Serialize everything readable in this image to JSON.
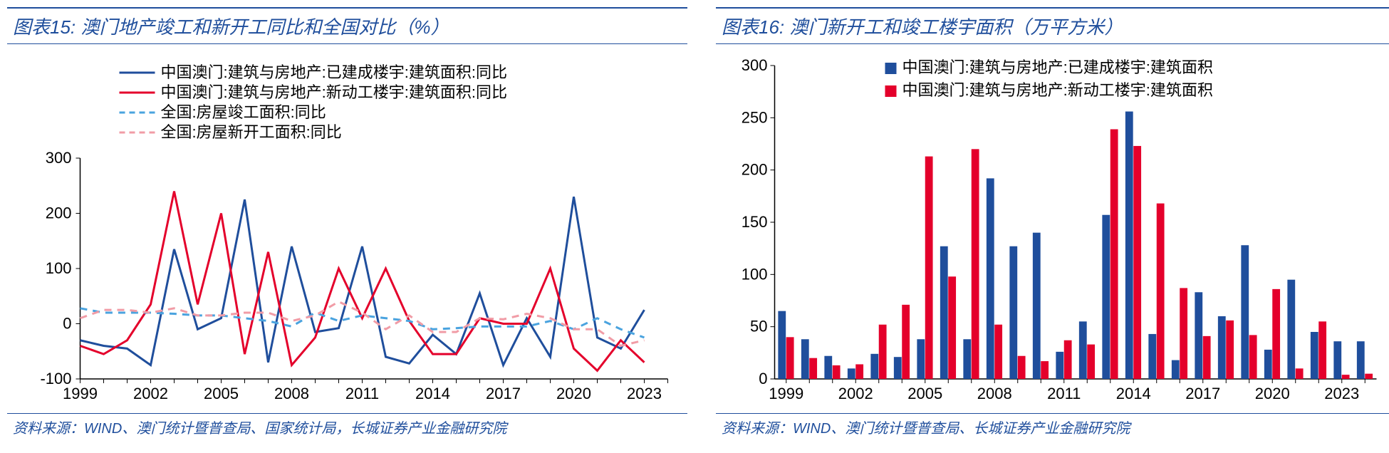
{
  "left_chart": {
    "title": "图表15:   澳门地产竣工和新开工同比和全国对比（%）",
    "source": "资料来源：WIND、澳门统计暨普查局、国家统计局，长城证券产业金融研究院",
    "type": "line",
    "background_color": "#ffffff",
    "title_color": "#1f4e9c",
    "title_fontsize": 26,
    "source_fontsize": 20,
    "axis_fontsize": 22,
    "x_labels": [
      "1999",
      "2002",
      "2005",
      "2008",
      "2011",
      "2014",
      "2017",
      "2020",
      "2023"
    ],
    "x_start": 1999,
    "x_end": 2024,
    "ylim": [
      -100,
      300
    ],
    "ytick_step": 100,
    "series": [
      {
        "name": "中国澳门:建筑与房地产:已建成楼宇:建筑面积:同比",
        "color": "#1f4e9c",
        "dash": "solid",
        "width": 3,
        "data": [
          -30,
          -40,
          -45,
          -75,
          135,
          -10,
          10,
          225,
          -70,
          140,
          -15,
          -8,
          140,
          -60,
          -72,
          -20,
          -55,
          55,
          -75,
          10,
          -60,
          230,
          -25,
          -45,
          25
        ]
      },
      {
        "name": "中国澳门:建筑与房地产:新动工楼宇:建筑面积:同比",
        "color": "#e4002b",
        "dash": "solid",
        "width": 3,
        "data": [
          -40,
          -55,
          -30,
          35,
          240,
          35,
          200,
          -55,
          130,
          -75,
          -25,
          100,
          10,
          100,
          5,
          -55,
          -55,
          10,
          0,
          0,
          100,
          -45,
          -85,
          -30,
          -70
        ]
      },
      {
        "name": "全国:房屋竣工面积:同比",
        "color": "#4aa3df",
        "dash": "dashed",
        "width": 3,
        "data": [
          28,
          20,
          20,
          20,
          18,
          15,
          15,
          10,
          5,
          -5,
          20,
          5,
          15,
          10,
          5,
          -10,
          -8,
          -5,
          -5,
          -5,
          5,
          -10,
          10,
          -10,
          -25
        ]
      },
      {
        "name": "全国:房屋新开工面积:同比",
        "color": "#f19ca6",
        "dash": "dashed",
        "width": 3,
        "data": [
          10,
          25,
          25,
          20,
          28,
          15,
          15,
          20,
          20,
          5,
          15,
          40,
          20,
          -10,
          15,
          -15,
          -15,
          10,
          8,
          18,
          10,
          -10,
          -10,
          -40,
          -30
        ]
      }
    ],
    "legend_position": "top",
    "legend_fontsize": 22
  },
  "right_chart": {
    "title": "图表16:   澳门新开工和竣工楼宇面积（万平方米）",
    "source": "资料来源：WIND、澳门统计暨普查局、长城证券产业金融研究院",
    "type": "bar",
    "background_color": "#ffffff",
    "title_color": "#1f4e9c",
    "title_fontsize": 26,
    "source_fontsize": 20,
    "axis_fontsize": 22,
    "x_labels": [
      "1999",
      "2002",
      "2005",
      "2008",
      "2011",
      "2014",
      "2017",
      "2020",
      "2023"
    ],
    "x_start": 1999,
    "x_end": 2024,
    "ylim": [
      0,
      300
    ],
    "ytick_step": 50,
    "bar_group_width": 0.7,
    "series": [
      {
        "name": "中国澳门:建筑与房地产:已建成楼宇:建筑面积",
        "color": "#1f4e9c",
        "data": [
          65,
          38,
          22,
          10,
          24,
          21,
          38,
          127,
          38,
          192,
          127,
          140,
          26,
          55,
          157,
          256,
          43,
          18,
          83,
          60,
          128,
          28,
          95,
          45,
          36,
          36
        ]
      },
      {
        "name": "中国澳门:建筑与房地产:新动工楼宇:建筑面积",
        "color": "#e4002b",
        "data": [
          40,
          20,
          13,
          14,
          52,
          71,
          213,
          98,
          220,
          52,
          22,
          17,
          37,
          33,
          239,
          223,
          168,
          87,
          41,
          56,
          42,
          86,
          10,
          55,
          4,
          5
        ]
      }
    ],
    "legend_position": "top",
    "legend_fontsize": 22
  }
}
